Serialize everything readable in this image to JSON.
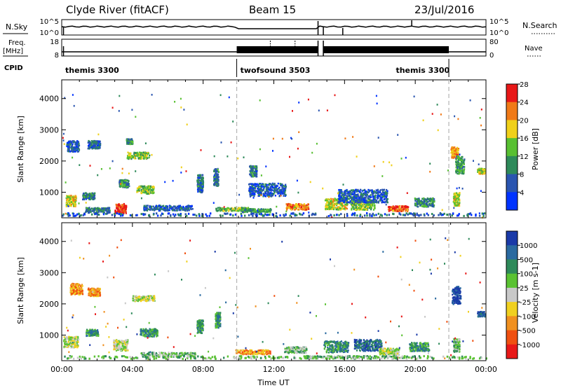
{
  "header": {
    "station": "Clyde River (fitACF)",
    "beam": "Beam 15",
    "date": "23/Jul/2016"
  },
  "top_panels": {
    "nsky_label": "N.Sky",
    "nsky_ticks": [
      "10^5",
      "10^0"
    ],
    "nsearch_label": "N.Search",
    "nsearch_ticks": [
      "10^5",
      "10^0"
    ],
    "freq_label_line1": "Freq.",
    "freq_label_line2": "[MHz]",
    "freq_ticks": [
      "18",
      "8"
    ],
    "nave_label": "Nave",
    "nave_ticks": [
      "80",
      "0"
    ],
    "cpid_label": "CPID",
    "cpid_segments": [
      {
        "label": "themis 3300",
        "start_h": 0,
        "end_h": 9.9
      },
      {
        "label": "twofsound 3503",
        "start_h": 9.9,
        "end_h": 21.9
      },
      {
        "label": "themis 3300",
        "start_h": 21.9,
        "end_h": 24
      }
    ],
    "cpid_label_positions_h": [
      0.2,
      10.1,
      18.9
    ]
  },
  "chart_data": [
    {
      "type": "heatmap",
      "name": "power",
      "title": "",
      "xlabel": "",
      "ylabel": "Slant Range [km]",
      "xlim": [
        0,
        24
      ],
      "ylim": [
        180,
        4600
      ],
      "yticks": [
        1000,
        2000,
        3000,
        4000
      ],
      "colorbar_label": "Power [dB]",
      "colorbar_ticks": [
        "4",
        "8",
        "12",
        "16",
        "20",
        "24",
        "28"
      ],
      "colorbar_colors": [
        "#0033ff",
        "#2a55b0",
        "#2e8a5a",
        "#58c032",
        "#f0d01a",
        "#f07a18",
        "#e81818"
      ],
      "blobs": [
        {
          "t": 3.3,
          "r": 500,
          "dt": 0.45,
          "dr": 220,
          "v": 27
        },
        {
          "t": 0.5,
          "r": 750,
          "dt": 0.4,
          "dr": 250,
          "v": 18
        },
        {
          "t": 1.5,
          "r": 900,
          "dt": 0.5,
          "dr": 150,
          "v": 9
        },
        {
          "t": 0.6,
          "r": 2500,
          "dt": 0.5,
          "dr": 250,
          "v": 6
        },
        {
          "t": 1.8,
          "r": 2550,
          "dt": 0.5,
          "dr": 180,
          "v": 8
        },
        {
          "t": 4.3,
          "r": 2200,
          "dt": 0.9,
          "dr": 150,
          "v": 15
        },
        {
          "t": 3.8,
          "r": 2650,
          "dt": 0.25,
          "dr": 120,
          "v": 10
        },
        {
          "t": 4.7,
          "r": 1100,
          "dt": 0.7,
          "dr": 180,
          "v": 16
        },
        {
          "t": 3.5,
          "r": 1300,
          "dt": 0.4,
          "dr": 180,
          "v": 11
        },
        {
          "t": 7.8,
          "r": 1300,
          "dt": 0.25,
          "dr": 400,
          "v": 8
        },
        {
          "t": 8.7,
          "r": 1500,
          "dt": 0.2,
          "dr": 400,
          "v": 9
        },
        {
          "t": 9.6,
          "r": 480,
          "dt": 1.3,
          "dr": 80,
          "v": 14
        },
        {
          "t": 11.0,
          "r": 440,
          "dt": 1.2,
          "dr": 80,
          "v": 12
        },
        {
          "t": 13.3,
          "r": 560,
          "dt": 0.9,
          "dr": 140,
          "v": 22
        },
        {
          "t": 11.6,
          "r": 1100,
          "dt": 1.5,
          "dr": 300,
          "v": 6
        },
        {
          "t": 10.8,
          "r": 1700,
          "dt": 0.3,
          "dr": 250,
          "v": 9
        },
        {
          "t": 15.5,
          "r": 650,
          "dt": 0.9,
          "dr": 260,
          "v": 18
        },
        {
          "t": 17.0,
          "r": 620,
          "dt": 1.0,
          "dr": 230,
          "v": 15
        },
        {
          "t": 19.0,
          "r": 500,
          "dt": 0.8,
          "dr": 120,
          "v": 25
        },
        {
          "t": 17.0,
          "r": 900,
          "dt": 2.0,
          "dr": 300,
          "v": 6
        },
        {
          "t": 20.5,
          "r": 700,
          "dt": 0.8,
          "dr": 200,
          "v": 10
        },
        {
          "t": 22.2,
          "r": 2300,
          "dt": 0.3,
          "dr": 250,
          "v": 22
        },
        {
          "t": 22.5,
          "r": 1900,
          "dt": 0.35,
          "dr": 400,
          "v": 12
        },
        {
          "t": 23.7,
          "r": 1700,
          "dt": 0.3,
          "dr": 120,
          "v": 17
        },
        {
          "t": 22.3,
          "r": 800,
          "dt": 0.25,
          "dr": 300,
          "v": 18
        },
        {
          "t": 6.0,
          "r": 520,
          "dt": 2.0,
          "dr": 120,
          "v": 7
        },
        {
          "t": 2.0,
          "r": 450,
          "dt": 1.0,
          "dr": 120,
          "v": 9
        }
      ]
    },
    {
      "type": "heatmap",
      "name": "velocity",
      "title": "",
      "xlabel": "Time UT",
      "ylabel": "Slant Range [km]",
      "xlim": [
        0,
        24
      ],
      "ylim": [
        180,
        4600
      ],
      "xticks": [
        "00:00",
        "04:00",
        "08:00",
        "12:00",
        "16:00",
        "20:00",
        "00:00"
      ],
      "yticks": [
        1000,
        2000,
        3000,
        4000
      ],
      "colorbar_label": "Velocity [m s-1]",
      "colorbar_ticks": [
        "1000",
        "500",
        "100",
        "25",
        "-25",
        "-100",
        "-500",
        "-1000"
      ],
      "colorbar_colors": [
        "#1a3aa8",
        "#2a6aa0",
        "#2e8a5a",
        "#5ac232",
        "#c8c8c8",
        "#f0d020",
        "#f09020",
        "#f05010",
        "#e81818"
      ],
      "blobs": [
        {
          "t": 0.8,
          "r": 2500,
          "dt": 0.5,
          "dr": 250,
          "v": 6
        },
        {
          "t": 1.8,
          "r": 2400,
          "dt": 0.5,
          "dr": 180,
          "v": 6
        },
        {
          "t": 4.6,
          "r": 2200,
          "dt": 0.9,
          "dr": 120,
          "v": 4
        },
        {
          "t": 0.5,
          "r": 800,
          "dt": 0.6,
          "dr": 250,
          "v": 4
        },
        {
          "t": 3.3,
          "r": 700,
          "dt": 0.6,
          "dr": 250,
          "v": 4
        },
        {
          "t": 1.7,
          "r": 1100,
          "dt": 0.5,
          "dr": 150,
          "v": 2
        },
        {
          "t": 4.9,
          "r": 1100,
          "dt": 0.7,
          "dr": 180,
          "v": 2
        },
        {
          "t": 7.8,
          "r": 1300,
          "dt": 0.25,
          "dr": 300,
          "v": 2
        },
        {
          "t": 8.8,
          "r": 1500,
          "dt": 0.2,
          "dr": 350,
          "v": 2
        },
        {
          "t": 10.8,
          "r": 480,
          "dt": 1.4,
          "dr": 100,
          "v": 6
        },
        {
          "t": 13.2,
          "r": 550,
          "dt": 0.9,
          "dr": 140,
          "v": 3
        },
        {
          "t": 15.5,
          "r": 650,
          "dt": 1.0,
          "dr": 260,
          "v": 2
        },
        {
          "t": 17.3,
          "r": 700,
          "dt": 1.1,
          "dr": 260,
          "v": 1
        },
        {
          "t": 18.5,
          "r": 500,
          "dt": 0.8,
          "dr": 150,
          "v": 4
        },
        {
          "t": 20.2,
          "r": 650,
          "dt": 0.8,
          "dr": 200,
          "v": 2
        },
        {
          "t": 22.3,
          "r": 2300,
          "dt": 0.35,
          "dr": 400,
          "v": 0
        },
        {
          "t": 23.7,
          "r": 1700,
          "dt": 0.3,
          "dr": 120,
          "v": 1
        },
        {
          "t": 22.3,
          "r": 700,
          "dt": 0.25,
          "dr": 300,
          "v": 3
        },
        {
          "t": 6.0,
          "r": 400,
          "dt": 2.2,
          "dr": 100,
          "v": 3
        },
        {
          "t": 16.5,
          "r": 320,
          "dt": 4.0,
          "dr": 60,
          "v": 3
        }
      ]
    }
  ],
  "colors": {
    "divider_dash": "#b4b4b4",
    "axis": "#000000"
  }
}
